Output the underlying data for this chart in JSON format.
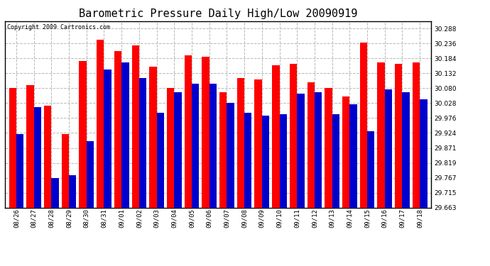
{
  "title": "Barometric Pressure Daily High/Low 20090919",
  "copyright": "Copyright 2009 Cartronics.com",
  "dates": [
    "08/26",
    "08/27",
    "08/28",
    "08/29",
    "08/30",
    "08/31",
    "09/01",
    "09/02",
    "09/03",
    "09/04",
    "09/05",
    "09/06",
    "09/07",
    "09/08",
    "09/09",
    "09/10",
    "09/11",
    "09/12",
    "09/13",
    "09/14",
    "09/15",
    "09/16",
    "09/17",
    "09/18"
  ],
  "highs": [
    30.08,
    30.09,
    30.02,
    29.92,
    30.175,
    30.25,
    30.21,
    30.23,
    30.155,
    30.08,
    30.195,
    30.19,
    30.065,
    30.115,
    30.11,
    30.16,
    30.165,
    30.1,
    30.08,
    30.05,
    30.24,
    30.17,
    30.165,
    30.17
  ],
  "lows": [
    29.92,
    30.015,
    29.765,
    29.775,
    29.895,
    30.145,
    30.17,
    30.115,
    29.995,
    30.065,
    30.095,
    30.095,
    30.03,
    29.995,
    29.985,
    29.99,
    30.06,
    30.065,
    29.99,
    30.025,
    29.93,
    30.075,
    30.065,
    30.04
  ],
  "ylim_min": 29.663,
  "ylim_max": 30.314,
  "yticks": [
    29.663,
    29.715,
    29.767,
    29.819,
    29.871,
    29.924,
    29.976,
    30.028,
    30.08,
    30.132,
    30.184,
    30.236,
    30.288
  ],
  "high_color": "#ff0000",
  "low_color": "#0000cc",
  "bg_color": "#ffffff",
  "grid_color": "#b8b8b8",
  "bar_width": 0.42,
  "title_fontsize": 11,
  "tick_fontsize": 6.5,
  "base": 29.663
}
